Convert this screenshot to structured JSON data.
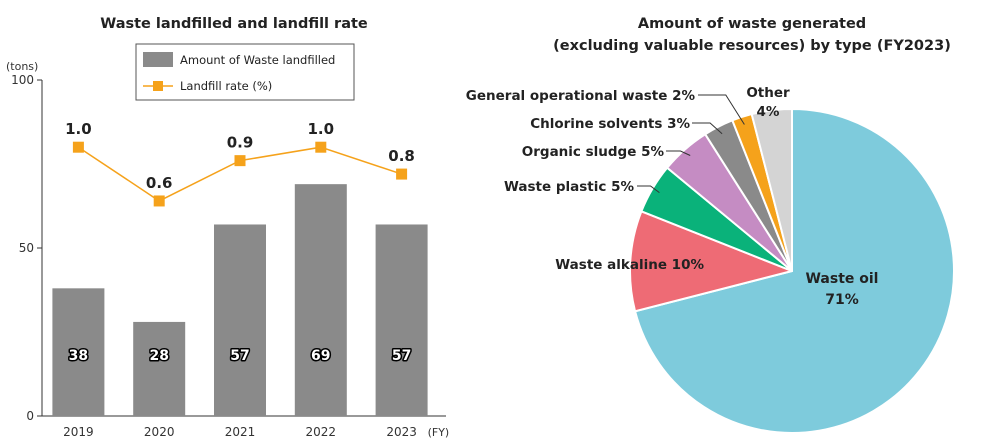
{
  "chart_data": [
    {
      "type": "bar",
      "title": "Waste landfilled and landfill rate",
      "ylabel": "(tons)",
      "xlabel_suffix": "(FY)",
      "ylim": [
        0,
        100
      ],
      "yticks": [
        0,
        50,
        100
      ],
      "categories": [
        "2019",
        "2020",
        "2021",
        "2022",
        "2023"
      ],
      "series": [
        {
          "name": "Amount of Waste landfilled",
          "type": "bar",
          "color": "#8a8a8a",
          "values": [
            38,
            28,
            57,
            69,
            57
          ],
          "labels": [
            "38",
            "28",
            "57",
            "69",
            "57"
          ]
        },
        {
          "name": "Landfill rate (%)",
          "type": "line",
          "color": "#f5a21b",
          "values": [
            1.0,
            0.6,
            0.9,
            1.0,
            0.8
          ],
          "labels": [
            "1.0",
            "0.6",
            "0.9",
            "1.0",
            "0.8"
          ]
        }
      ],
      "rate_axis_range": [
        -1.0,
        1.5
      ],
      "legend": "top-right"
    },
    {
      "type": "pie",
      "title": [
        "Amount of waste generated",
        "(excluding valuable resources) by type (FY2023)"
      ],
      "slices": [
        {
          "name": "Waste oil",
          "value": 71,
          "label": "71%",
          "color": "#7ecbdc"
        },
        {
          "name": "Waste alkaline",
          "value": 10,
          "label": "Waste alkaline 10%",
          "color": "#ee6b75"
        },
        {
          "name": "Waste plastic",
          "value": 5,
          "label": "Waste plastic 5%",
          "color": "#0ab27a"
        },
        {
          "name": "Organic sludge",
          "value": 5,
          "label": "Organic sludge 5%",
          "color": "#c58cc3"
        },
        {
          "name": "Chlorine solvents",
          "value": 3,
          "label": "Chlorine solvents 3%",
          "color": "#8a8a8a"
        },
        {
          "name": "General operational waste",
          "value": 2,
          "label": "General operational waste 2%",
          "color": "#f5a21b"
        },
        {
          "name": "Other",
          "value": 4,
          "label": "4%",
          "color": "#d4d4d4"
        }
      ]
    }
  ]
}
